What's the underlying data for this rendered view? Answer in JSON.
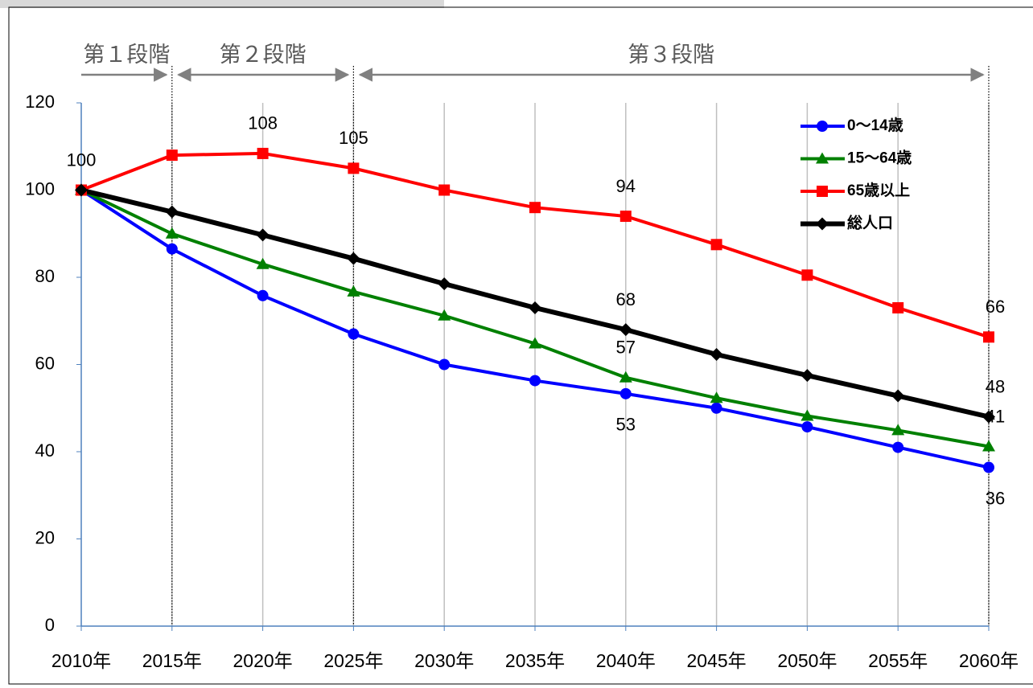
{
  "chart_data": {
    "type": "line",
    "x": [
      2010,
      2015,
      2020,
      2025,
      2030,
      2035,
      2040,
      2045,
      2050,
      2055,
      2060
    ],
    "xlim": [
      2010,
      2060
    ],
    "xticks": [
      {
        "value": 2010,
        "label": "2010年"
      },
      {
        "value": 2015,
        "label": "2015年"
      },
      {
        "value": 2020,
        "label": "2020年"
      },
      {
        "value": 2025,
        "label": "2025年"
      },
      {
        "value": 2030,
        "label": "2030年"
      },
      {
        "value": 2035,
        "label": "2035年"
      },
      {
        "value": 2040,
        "label": "2040年"
      },
      {
        "value": 2045,
        "label": "2045年"
      },
      {
        "value": 2050,
        "label": "2050年"
      },
      {
        "value": 2055,
        "label": "2055年"
      },
      {
        "value": 2060,
        "label": "2060年"
      }
    ],
    "ylim": [
      0,
      120
    ],
    "yticks": [
      0,
      20,
      40,
      60,
      80,
      100,
      120
    ],
    "grid": "x",
    "legend": "top-right",
    "series": [
      {
        "name": "0〜14歳",
        "color": "#0000ff",
        "marker": "circle",
        "label_pos": "below",
        "values": [
          100,
          86.5,
          75.8,
          67,
          60,
          56.3,
          53.3,
          50,
          45.7,
          41,
          36.4
        ],
        "value_labels": [
          null,
          null,
          null,
          null,
          null,
          null,
          "53",
          null,
          null,
          null,
          "36"
        ]
      },
      {
        "name": "15〜64歳",
        "color": "#008000",
        "marker": "triangle",
        "label_pos": "above",
        "values": [
          100,
          90,
          83,
          76.7,
          71.2,
          64.8,
          57,
          52.3,
          48.2,
          44.9,
          41.2
        ],
        "value_labels": [
          null,
          null,
          null,
          null,
          null,
          null,
          "57",
          null,
          null,
          null,
          "41"
        ]
      },
      {
        "name": "65歳以上",
        "color": "#ff0000",
        "marker": "square",
        "label_pos": "above",
        "values": [
          100,
          108,
          108.4,
          105,
          100,
          96,
          94,
          87.5,
          80.5,
          73,
          66.3
        ],
        "value_labels": [
          "100",
          null,
          "108",
          "105",
          null,
          null,
          "94",
          null,
          null,
          null,
          "66"
        ]
      },
      {
        "name": "総人口",
        "color": "#000000",
        "marker": "diamond",
        "label_pos": "above",
        "values": [
          100,
          95,
          89.7,
          84.3,
          78.5,
          73,
          68,
          62.3,
          57.5,
          52.8,
          48
        ],
        "value_labels": [
          null,
          null,
          null,
          null,
          null,
          null,
          "68",
          null,
          null,
          null,
          "48"
        ]
      }
    ],
    "stages": [
      {
        "text": "第１段階",
        "from": 2010,
        "to": 2015
      },
      {
        "text": "第２段階",
        "from": 2015,
        "to": 2025
      },
      {
        "text": "第３段階",
        "from": 2025,
        "to": 2060
      }
    ]
  }
}
